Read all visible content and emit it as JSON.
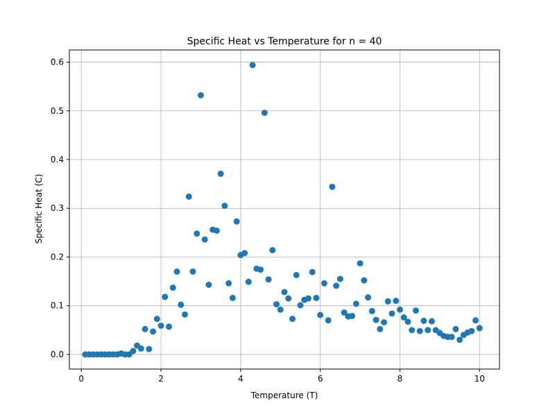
{
  "chart_data": {
    "type": "scatter",
    "title": "Specific Heat vs Temperature for n = 40",
    "xlabel": "Temperature (T)",
    "ylabel": "Specific Heat (C)",
    "xlim": [
      -0.3,
      10.5
    ],
    "ylim": [
      -0.03,
      0.625
    ],
    "xticks": [
      0,
      2,
      4,
      6,
      8,
      10
    ],
    "xtick_labels": [
      "0",
      "2",
      "4",
      "6",
      "8",
      "10"
    ],
    "yticks": [
      0.0,
      0.1,
      0.2,
      0.3,
      0.4,
      0.5,
      0.6
    ],
    "ytick_labels": [
      "0.0",
      "0.1",
      "0.2",
      "0.3",
      "0.4",
      "0.5",
      "0.6"
    ],
    "grid": true,
    "marker_color": "#1f77b4",
    "series": [
      {
        "x": [
          0.1,
          0.2,
          0.3,
          0.4,
          0.5,
          0.6,
          0.7,
          0.8,
          0.9,
          1.0,
          1.1,
          1.2,
          1.3,
          1.4,
          1.5,
          1.6,
          1.7,
          1.8,
          1.9,
          2.0,
          2.1,
          2.2,
          2.3,
          2.4,
          2.5,
          2.6,
          2.7,
          2.8,
          2.9,
          3.0,
          3.1,
          3.2,
          3.3,
          3.4,
          3.5,
          3.6,
          3.7,
          3.8,
          3.9,
          4.0,
          4.1,
          4.2,
          4.3,
          4.4,
          4.5,
          4.6,
          4.7,
          4.8,
          4.9,
          5.0,
          5.1,
          5.2,
          5.3,
          5.4,
          5.5,
          5.6,
          5.7,
          5.8,
          5.9,
          6.0,
          6.1,
          6.2,
          6.3,
          6.4,
          6.5,
          6.6,
          6.7,
          6.8,
          6.9,
          7.0,
          7.1,
          7.2,
          7.3,
          7.4,
          7.5,
          7.6,
          7.7,
          7.8,
          7.9,
          8.0,
          8.1,
          8.2,
          8.3,
          8.4,
          8.5,
          8.6,
          8.7,
          8.8,
          8.9,
          9.0,
          9.1,
          9.2,
          9.3,
          9.4,
          9.5,
          9.6,
          9.7,
          9.8,
          9.9,
          10.0
        ],
        "y": [
          0.0,
          0.0,
          0.0,
          0.0,
          0.0,
          0.0,
          0.0,
          0.0,
          0.0,
          0.002,
          0.0,
          0.0,
          0.007,
          0.018,
          0.012,
          0.052,
          0.011,
          0.047,
          0.073,
          0.059,
          0.118,
          0.057,
          0.137,
          0.17,
          0.102,
          0.082,
          0.324,
          0.17,
          0.248,
          0.532,
          0.236,
          0.143,
          0.256,
          0.254,
          0.371,
          0.305,
          0.146,
          0.116,
          0.273,
          0.204,
          0.208,
          0.149,
          0.594,
          0.176,
          0.174,
          0.496,
          0.154,
          0.214,
          0.103,
          0.092,
          0.128,
          0.115,
          0.073,
          0.163,
          0.101,
          0.112,
          0.115,
          0.169,
          0.116,
          0.081,
          0.146,
          0.07,
          0.344,
          0.141,
          0.155,
          0.086,
          0.078,
          0.079,
          0.104,
          0.187,
          0.152,
          0.117,
          0.089,
          0.071,
          0.052,
          0.066,
          0.109,
          0.084,
          0.11,
          0.092,
          0.076,
          0.067,
          0.05,
          0.09,
          0.048,
          0.069,
          0.05,
          0.068,
          0.05,
          0.044,
          0.038,
          0.036,
          0.036,
          0.052,
          0.03,
          0.04,
          0.045,
          0.048,
          0.07,
          0.054
        ]
      }
    ]
  }
}
